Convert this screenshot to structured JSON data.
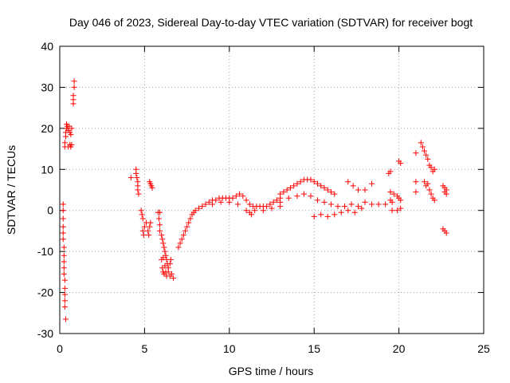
{
  "chart_data": {
    "type": "scatter",
    "title": "Day 046 of 2023, Sidereal Day-to-day VTEC variation (SDTVAR) for receiver bogt",
    "xlabel": "GPS time / hours",
    "ylabel": "SDTVAR / TECUs",
    "xlim": [
      0,
      25
    ],
    "ylim": [
      -30,
      40
    ],
    "x_ticks": [
      0,
      5,
      10,
      15,
      20,
      25
    ],
    "y_ticks": [
      -30,
      -20,
      -10,
      0,
      10,
      20,
      30,
      40
    ],
    "grid": true,
    "legend": "none",
    "marker": "+",
    "series": [
      {
        "name": "SDTVAR",
        "color": "#ff0000",
        "points": [
          [
            0.3,
            15.5
          ],
          [
            0.3,
            16.5
          ],
          [
            0.35,
            18
          ],
          [
            0.35,
            19
          ],
          [
            0.4,
            20
          ],
          [
            0.4,
            21
          ],
          [
            0.45,
            20.5
          ],
          [
            0.5,
            19.5
          ],
          [
            0.55,
            20.5
          ],
          [
            0.6,
            19
          ],
          [
            0.65,
            18.5
          ],
          [
            0.7,
            20
          ],
          [
            0.5,
            15.5
          ],
          [
            0.6,
            16
          ],
          [
            0.65,
            15.5
          ],
          [
            0.7,
            16
          ],
          [
            0.8,
            26
          ],
          [
            0.8,
            28
          ],
          [
            0.85,
            30
          ],
          [
            0.85,
            31.5
          ],
          [
            0.8,
            27
          ],
          [
            0.2,
            1.5
          ],
          [
            0.2,
            0
          ],
          [
            0.2,
            -2
          ],
          [
            0.2,
            -4
          ],
          [
            0.2,
            -5.5
          ],
          [
            0.2,
            -7
          ],
          [
            0.25,
            -9
          ],
          [
            0.25,
            -11
          ],
          [
            0.25,
            -12.5
          ],
          [
            0.25,
            -14
          ],
          [
            0.25,
            -15.5
          ],
          [
            0.3,
            -17
          ],
          [
            0.3,
            -19
          ],
          [
            0.3,
            -20.5
          ],
          [
            0.3,
            -22
          ],
          [
            0.3,
            -23.5
          ],
          [
            0.35,
            -26.5
          ],
          [
            4.2,
            8
          ],
          [
            4.5,
            10
          ],
          [
            4.5,
            9
          ],
          [
            4.55,
            8
          ],
          [
            4.6,
            7
          ],
          [
            4.6,
            6
          ],
          [
            4.6,
            5
          ],
          [
            4.65,
            4
          ],
          [
            4.8,
            0
          ],
          [
            4.85,
            -1
          ],
          [
            4.9,
            -2
          ],
          [
            4.9,
            -5
          ],
          [
            4.95,
            -6
          ],
          [
            5.0,
            -4
          ],
          [
            5.1,
            -3
          ],
          [
            5.2,
            -5
          ],
          [
            5.25,
            -6
          ],
          [
            5.3,
            -4
          ],
          [
            5.35,
            -3
          ],
          [
            5.3,
            7
          ],
          [
            5.35,
            6.5
          ],
          [
            5.4,
            6
          ],
          [
            5.45,
            5.5
          ],
          [
            5.8,
            -0.5
          ],
          [
            5.85,
            -2
          ],
          [
            5.9,
            -0.5
          ],
          [
            5.9,
            -3.5
          ],
          [
            5.9,
            -5
          ],
          [
            6.0,
            -6
          ],
          [
            6.05,
            -7
          ],
          [
            6.1,
            -8
          ],
          [
            6.15,
            -9
          ],
          [
            6.2,
            -10
          ],
          [
            6.25,
            -11
          ],
          [
            6.3,
            -12
          ],
          [
            6.35,
            -13
          ],
          [
            6.4,
            -14
          ],
          [
            6.5,
            -13
          ],
          [
            6.55,
            -12
          ],
          [
            6.0,
            -12
          ],
          [
            6.05,
            -14
          ],
          [
            6.1,
            -15
          ],
          [
            6.15,
            -15.5
          ],
          [
            6.25,
            -15
          ],
          [
            6.3,
            -16
          ],
          [
            6.4,
            -15
          ],
          [
            6.5,
            -16
          ],
          [
            6.6,
            -15.5
          ],
          [
            6.7,
            -16.5
          ],
          [
            6.2,
            -13.5
          ],
          [
            6.1,
            -11.5
          ],
          [
            7.0,
            -9
          ],
          [
            7.1,
            -8
          ],
          [
            7.2,
            -7
          ],
          [
            7.3,
            -6
          ],
          [
            7.4,
            -5
          ],
          [
            7.5,
            -4
          ],
          [
            7.6,
            -3
          ],
          [
            7.7,
            -2
          ],
          [
            7.8,
            -1
          ],
          [
            7.9,
            -0.5
          ],
          [
            8.0,
            0
          ],
          [
            8.2,
            0.5
          ],
          [
            8.4,
            1
          ],
          [
            8.6,
            1.5
          ],
          [
            8.8,
            2
          ],
          [
            9.0,
            2.5
          ],
          [
            9.2,
            2.5
          ],
          [
            9.4,
            3
          ],
          [
            9.6,
            3
          ],
          [
            9.8,
            3
          ],
          [
            10.0,
            3
          ],
          [
            10.2,
            3
          ],
          [
            10.4,
            3.5
          ],
          [
            10.6,
            4
          ],
          [
            10.8,
            3.5
          ],
          [
            11.0,
            2.5
          ],
          [
            11.2,
            1.5
          ],
          [
            11.4,
            1
          ],
          [
            11.6,
            1
          ],
          [
            11.8,
            1
          ],
          [
            12.0,
            1
          ],
          [
            12.2,
            1
          ],
          [
            12.4,
            1.5
          ],
          [
            12.6,
            2
          ],
          [
            12.8,
            2.5
          ],
          [
            13.0,
            3
          ],
          [
            9.0,
            1.5
          ],
          [
            9.5,
            2
          ],
          [
            10.0,
            2
          ],
          [
            10.5,
            1.5
          ],
          [
            11.0,
            0
          ],
          [
            11.2,
            -0.5
          ],
          [
            11.5,
            0
          ],
          [
            12.0,
            0
          ],
          [
            12.5,
            0.5
          ],
          [
            13.0,
            1
          ],
          [
            11.3,
            -1
          ],
          [
            13.0,
            4
          ],
          [
            13.2,
            4.5
          ],
          [
            13.4,
            5
          ],
          [
            13.6,
            5.5
          ],
          [
            13.8,
            6
          ],
          [
            14.0,
            6.5
          ],
          [
            14.2,
            7
          ],
          [
            14.4,
            7.5
          ],
          [
            14.6,
            7.5
          ],
          [
            14.8,
            7.5
          ],
          [
            15.0,
            7
          ],
          [
            15.2,
            6.5
          ],
          [
            15.4,
            6
          ],
          [
            15.6,
            5.5
          ],
          [
            15.8,
            5
          ],
          [
            16.0,
            4.5
          ],
          [
            16.2,
            4
          ],
          [
            13.0,
            2
          ],
          [
            13.5,
            3
          ],
          [
            14.0,
            3.5
          ],
          [
            14.4,
            4
          ],
          [
            14.8,
            3.5
          ],
          [
            15.2,
            2.5
          ],
          [
            15.6,
            2
          ],
          [
            16.0,
            1.5
          ],
          [
            16.4,
            1
          ],
          [
            16.8,
            1
          ],
          [
            17.2,
            1.5
          ],
          [
            17.6,
            1
          ],
          [
            18.0,
            2
          ],
          [
            18.4,
            1.5
          ],
          [
            18.8,
            1.5
          ],
          [
            19.2,
            1.5
          ],
          [
            19.6,
            2
          ],
          [
            15.0,
            -1.5
          ],
          [
            15.4,
            -1
          ],
          [
            15.8,
            -1.5
          ],
          [
            16.2,
            -1
          ],
          [
            16.6,
            -0.5
          ],
          [
            17.0,
            0
          ],
          [
            17.4,
            -0.5
          ],
          [
            17.8,
            0.5
          ],
          [
            17.0,
            7
          ],
          [
            17.3,
            6
          ],
          [
            17.6,
            5
          ],
          [
            18.0,
            5
          ],
          [
            18.4,
            6.5
          ],
          [
            19.4,
            9
          ],
          [
            19.5,
            9.5
          ],
          [
            19.5,
            4.5
          ],
          [
            19.7,
            4
          ],
          [
            19.9,
            3.5
          ],
          [
            20.0,
            3
          ],
          [
            20.1,
            2.5
          ],
          [
            19.5,
            2.5
          ],
          [
            19.6,
            0
          ],
          [
            19.9,
            0
          ],
          [
            20.1,
            0.5
          ],
          [
            20.0,
            12
          ],
          [
            20.1,
            11.5
          ],
          [
            21.0,
            14
          ],
          [
            21.0,
            7
          ],
          [
            21.0,
            4.5
          ],
          [
            21.3,
            16.5
          ],
          [
            21.4,
            15.5
          ],
          [
            21.5,
            14.5
          ],
          [
            21.6,
            13.5
          ],
          [
            21.7,
            12.5
          ],
          [
            21.8,
            11
          ],
          [
            21.9,
            10.5
          ],
          [
            22.0,
            9.5
          ],
          [
            22.1,
            10
          ],
          [
            21.5,
            7
          ],
          [
            21.6,
            6
          ],
          [
            21.7,
            6.5
          ],
          [
            21.8,
            5
          ],
          [
            21.9,
            4
          ],
          [
            22.0,
            3
          ],
          [
            22.1,
            2.5
          ],
          [
            22.6,
            6
          ],
          [
            22.7,
            5.5
          ],
          [
            22.8,
            5
          ],
          [
            22.7,
            4.5
          ],
          [
            22.8,
            4
          ],
          [
            22.6,
            -4.5
          ],
          [
            22.7,
            -5
          ],
          [
            22.8,
            -5.5
          ]
        ]
      }
    ]
  }
}
